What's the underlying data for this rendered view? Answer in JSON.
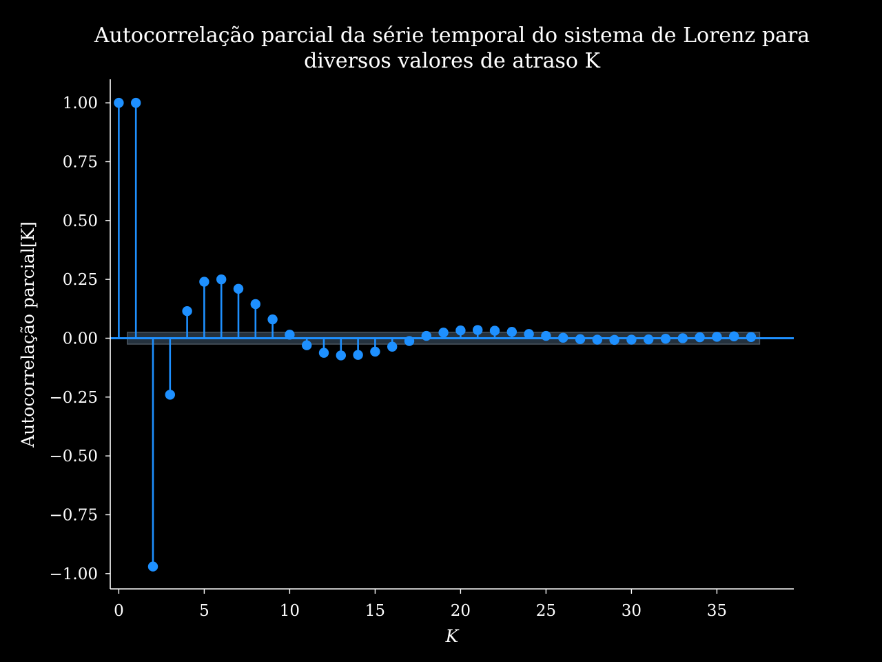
{
  "chart_data": {
    "type": "stem",
    "title_line1": "Autocorrelação parcial da série temporal do sistema de Lorenz para",
    "title_line2": "diversos valores de atraso K",
    "xlabel": "K",
    "ylabel": "Autocorrelação parcial[K]",
    "xlim": [
      -0.5,
      39.5
    ],
    "ylim": [
      -1.065,
      1.1
    ],
    "xticks": [
      0,
      5,
      10,
      15,
      20,
      25,
      30,
      35
    ],
    "xtick_labels": [
      "0",
      "5",
      "10",
      "15",
      "20",
      "25",
      "30",
      "35"
    ],
    "yticks": [
      1.0,
      0.75,
      0.5,
      0.25,
      0.0,
      -0.25,
      -0.5,
      -0.75,
      -1.0
    ],
    "ytick_labels": [
      "1.00",
      "0.75",
      "0.50",
      "0.25",
      "0.00",
      "−0.25",
      "−0.50",
      "−0.75",
      "−1.00"
    ],
    "confidence_band": {
      "lower": -0.025,
      "upper": 0.025,
      "x_start": 0.5,
      "x_end": 37.5
    },
    "x": [
      0,
      1,
      2,
      3,
      4,
      5,
      6,
      7,
      8,
      9,
      10,
      11,
      12,
      13,
      14,
      15,
      16,
      17,
      18,
      19,
      20,
      21,
      22,
      23,
      24,
      25,
      26,
      27,
      28,
      29,
      30,
      31,
      32,
      33,
      34,
      35,
      36,
      37
    ],
    "values": [
      1.0,
      1.0,
      -0.97,
      -0.24,
      0.115,
      0.24,
      0.25,
      0.21,
      0.145,
      0.08,
      0.015,
      -0.03,
      -0.062,
      -0.073,
      -0.071,
      -0.057,
      -0.036,
      -0.012,
      0.01,
      0.024,
      0.033,
      0.035,
      0.032,
      0.027,
      0.018,
      0.01,
      0.002,
      -0.004,
      -0.006,
      -0.007,
      -0.006,
      -0.005,
      -0.002,
      0.0,
      0.004,
      0.006,
      0.008,
      0.005
    ],
    "colors": {
      "stem": "#1e90ff",
      "marker": "#1e90ff",
      "baseline": "#1e90ff",
      "band_fill": "#2a3a48",
      "band_edge": "#4a5560",
      "background": "#000000",
      "axis": "#ffffff"
    },
    "grid": false,
    "legend": "none"
  }
}
